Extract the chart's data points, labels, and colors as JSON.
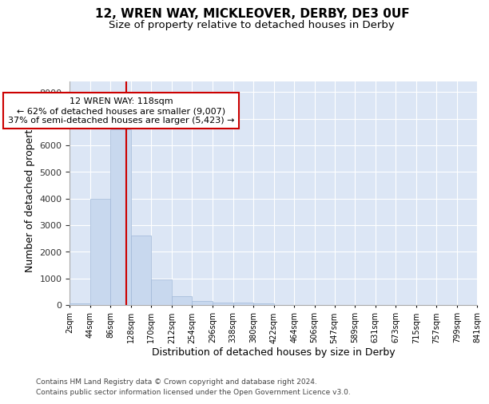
{
  "title": "12, WREN WAY, MICKLEOVER, DERBY, DE3 0UF",
  "subtitle": "Size of property relative to detached houses in Derby",
  "xlabel": "Distribution of detached houses by size in Derby",
  "ylabel": "Number of detached properties",
  "bar_edges": [
    2,
    44,
    86,
    128,
    170,
    212,
    254,
    296,
    338,
    380,
    422,
    464,
    506,
    547,
    589,
    631,
    673,
    715,
    757,
    799,
    841
  ],
  "bar_heights": [
    75,
    4000,
    6600,
    2600,
    950,
    330,
    150,
    100,
    80,
    60,
    0,
    0,
    0,
    0,
    0,
    0,
    0,
    0,
    0,
    0
  ],
  "bar_color": "#c8d8ee",
  "bar_edge_color": "#a0b8d8",
  "red_line_x": 118,
  "red_line_color": "#cc0000",
  "annotation_text": "12 WREN WAY: 118sqm\n← 62% of detached houses are smaller (9,007)\n37% of semi-detached houses are larger (5,423) →",
  "annotation_box_facecolor": "#ffffff",
  "annotation_box_edgecolor": "#cc0000",
  "ylim": [
    0,
    8400
  ],
  "yticks": [
    0,
    1000,
    2000,
    3000,
    4000,
    5000,
    6000,
    7000,
    8000
  ],
  "plot_bg_color": "#dce6f5",
  "fig_bg_color": "#ffffff",
  "grid_color": "#ffffff",
  "footer_line1": "Contains HM Land Registry data © Crown copyright and database right 2024.",
  "footer_line2": "Contains public sector information licensed under the Open Government Licence v3.0.",
  "title_fontsize": 11,
  "subtitle_fontsize": 9.5,
  "axis_label_fontsize": 9,
  "tick_fontsize": 7,
  "footer_fontsize": 6.5
}
